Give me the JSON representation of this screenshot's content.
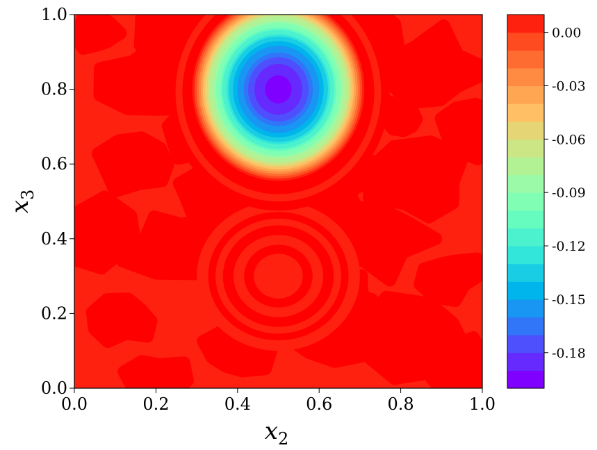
{
  "chart_data": {
    "type": "heatmap",
    "subtype": "filled-contour",
    "title": "",
    "xlabel": "x",
    "xlabel_sub": "2",
    "ylabel": "x",
    "ylabel_sub": "3",
    "xlim": [
      0.0,
      1.0
    ],
    "ylim": [
      0.0,
      1.0
    ],
    "x_ticks": [
      "0.0",
      "0.2",
      "0.4",
      "0.6",
      "0.8",
      "1.0"
    ],
    "y_ticks": [
      "0.0",
      "0.2",
      "0.4",
      "0.6",
      "0.8",
      "1.0"
    ],
    "grid": false,
    "colormap": "rainbow",
    "colorbar": {
      "range": [
        -0.2,
        0.01
      ],
      "tick_values": [
        0.0,
        -0.03,
        -0.06,
        -0.09,
        -0.12,
        -0.15,
        -0.18
      ],
      "tick_labels": [
        "0.00",
        "-0.03",
        "-0.06",
        "-0.09",
        "-0.12",
        "-0.15",
        "-0.18"
      ],
      "levels": [
        -0.2,
        -0.19,
        -0.18,
        -0.17,
        -0.16,
        -0.15,
        -0.14,
        -0.13,
        -0.12,
        -0.11,
        -0.1,
        -0.09,
        -0.08,
        -0.07,
        -0.06,
        -0.05,
        -0.04,
        -0.03,
        -0.02,
        -0.01,
        0.0,
        0.01
      ],
      "colors": [
        "#8000ff",
        "#6629fe",
        "#4d50fc",
        "#3176f8",
        "#1996f3",
        "#00b5eb",
        "#18cde4",
        "#32e6da",
        "#4cf2ce",
        "#66fcc0",
        "#80ffb4",
        "#9afaa7",
        "#b2f295",
        "#cce585",
        "#e6d574",
        "#ffbf64",
        "#ffa652",
        "#ff8b43",
        "#ff6c32",
        "#ff4b20",
        "#ff2110",
        "#ff0000"
      ]
    },
    "features": [
      {
        "kind": "minimum",
        "x": 0.5,
        "y": 0.8,
        "value": -0.195,
        "radius": 0.2
      },
      {
        "kind": "ring-pattern",
        "x": 0.5,
        "y": 0.3,
        "value": -0.015,
        "radius": 0.2
      }
    ]
  }
}
